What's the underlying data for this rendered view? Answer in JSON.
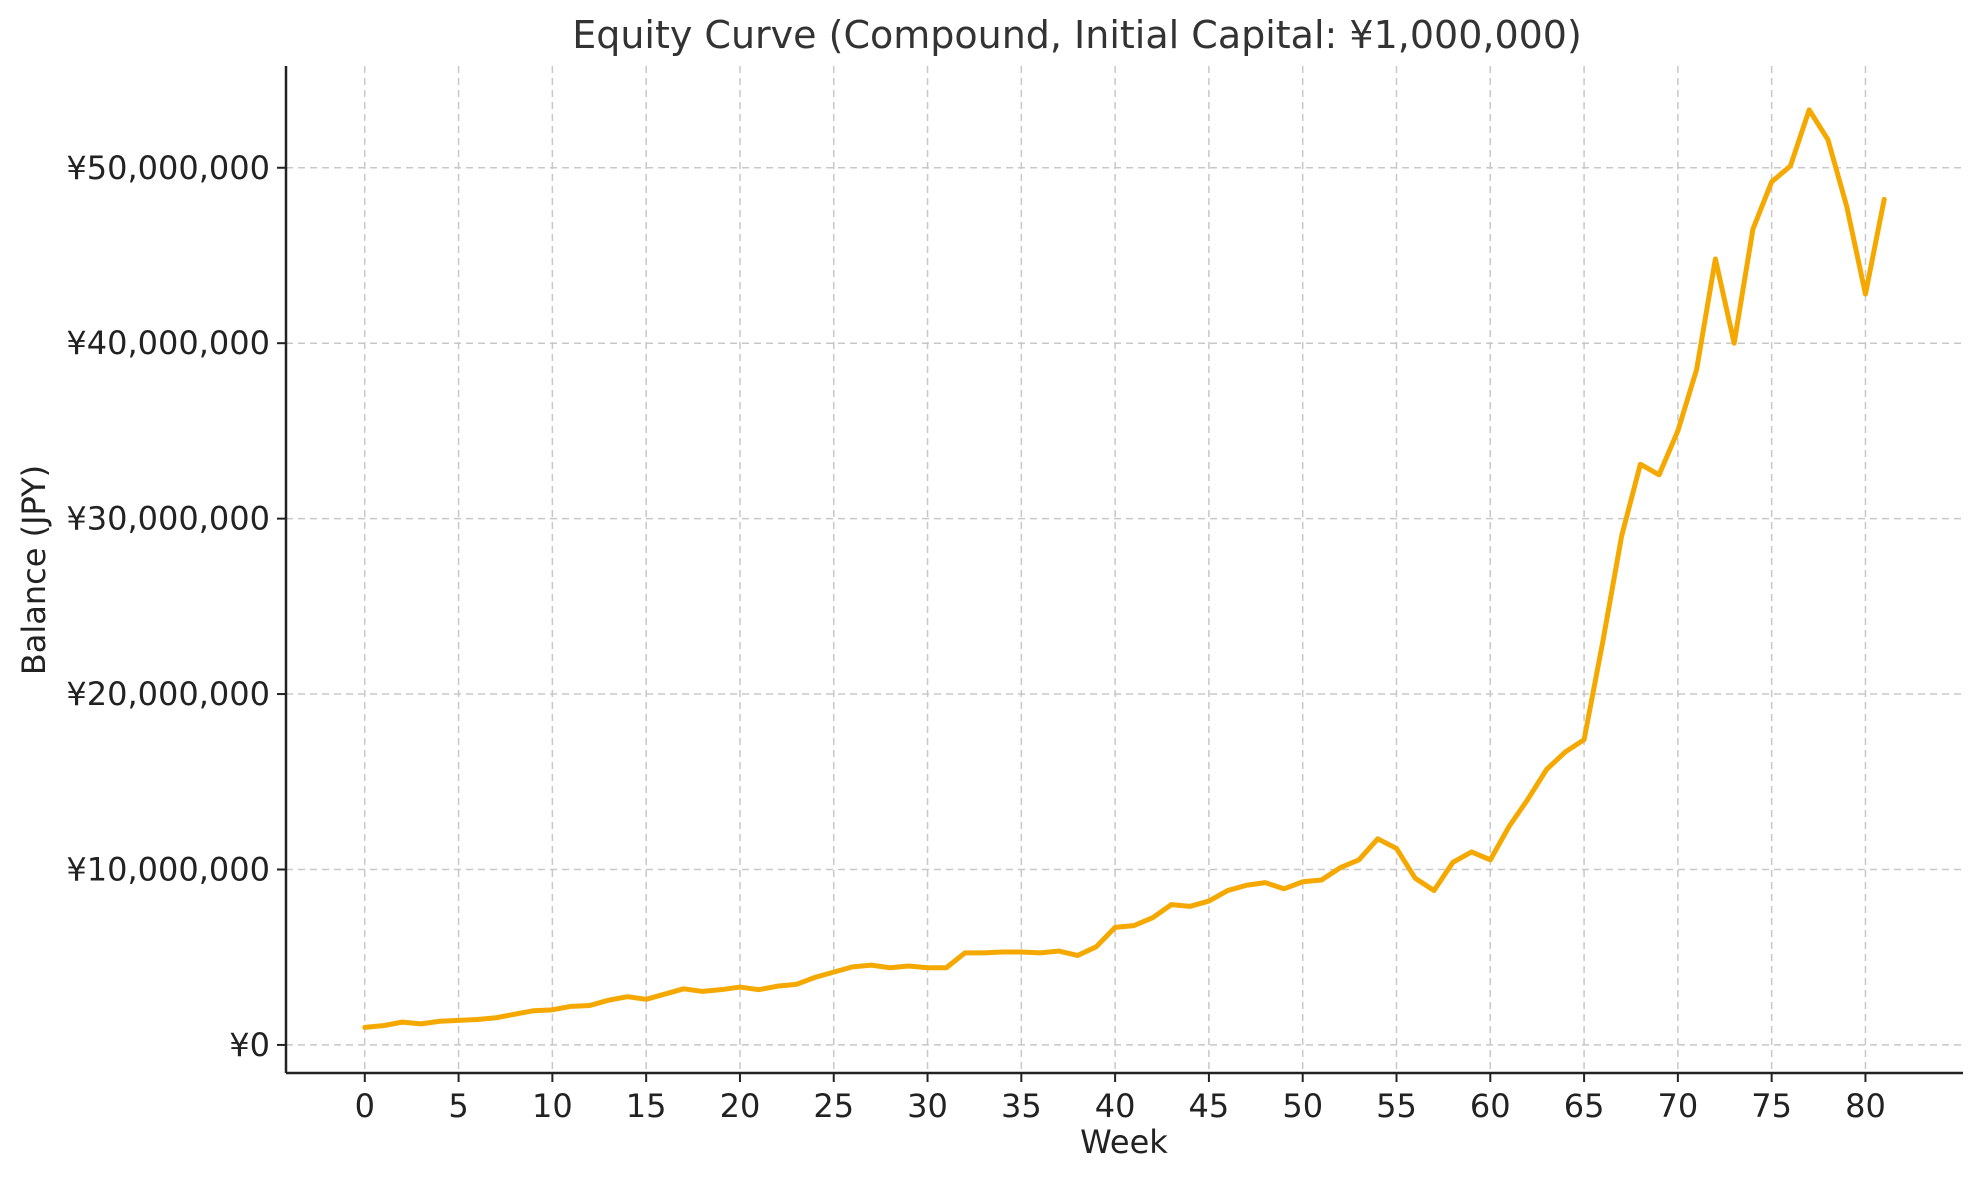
{
  "chart_data": {
    "type": "line",
    "title": "Equity Curve (Compound, Initial Capital: ¥1,000,000)",
    "xlabel": "Week",
    "ylabel": "Balance (JPY)",
    "xlim": [
      -4.2,
      85.2
    ],
    "ylim": [
      -1600000,
      55800000
    ],
    "grid": true,
    "x_ticks": [
      0,
      5,
      10,
      15,
      20,
      25,
      30,
      35,
      40,
      45,
      50,
      55,
      60,
      65,
      70,
      75,
      80
    ],
    "y_ticks": [
      0,
      10000000,
      20000000,
      30000000,
      40000000,
      50000000
    ],
    "y_tick_labels": [
      "¥0",
      "¥10,000,000",
      "¥20,000,000",
      "¥30,000,000",
      "¥40,000,000",
      "¥50,000,000"
    ],
    "colors": {
      "line": "#f5a800"
    },
    "series": [
      {
        "x": [
          0,
          1,
          2,
          3,
          4,
          5,
          6,
          7,
          8,
          9,
          10,
          11,
          12,
          13,
          14,
          15,
          16,
          17,
          18,
          19,
          20,
          21,
          22,
          23,
          24,
          25,
          26,
          27,
          28,
          29,
          30,
          31,
          32,
          33,
          34,
          35,
          36,
          37,
          38,
          39,
          40,
          41,
          42,
          43,
          44,
          45,
          46,
          47,
          48,
          49,
          50,
          51,
          52,
          53,
          54,
          55,
          56,
          57,
          58,
          59,
          60,
          61,
          62,
          63,
          64,
          65,
          66,
          67,
          68,
          69,
          70,
          71,
          72,
          73,
          74,
          75,
          76,
          77,
          78,
          79,
          80,
          81
        ],
        "y": [
          1000000,
          1100000,
          1300000,
          1200000,
          1350000,
          1400000,
          1450000,
          1550000,
          1750000,
          1950000,
          2000000,
          2200000,
          2250000,
          2550000,
          2750000,
          2600000,
          2900000,
          3200000,
          3050000,
          3150000,
          3300000,
          3150000,
          3350000,
          3450000,
          3850000,
          4150000,
          4450000,
          4550000,
          4400000,
          4500000,
          4400000,
          4400000,
          5250000,
          5250000,
          5300000,
          5300000,
          5250000,
          5350000,
          5100000,
          5600000,
          6700000,
          6800000,
          7250000,
          8000000,
          7900000,
          8200000,
          8800000,
          9100000,
          9250000,
          8900000,
          9300000,
          9400000,
          10100000,
          10550000,
          11750000,
          11200000,
          9500000,
          8800000,
          10400000,
          11000000,
          10550000,
          12450000,
          14000000,
          15700000,
          16700000,
          17400000,
          23000000,
          29000000,
          33100000,
          32500000,
          35000000,
          38500000,
          44800000,
          40000000,
          46500000,
          49200000,
          50100000,
          53300000,
          51600000,
          47800000,
          42800000,
          48200000
        ]
      }
    ]
  }
}
